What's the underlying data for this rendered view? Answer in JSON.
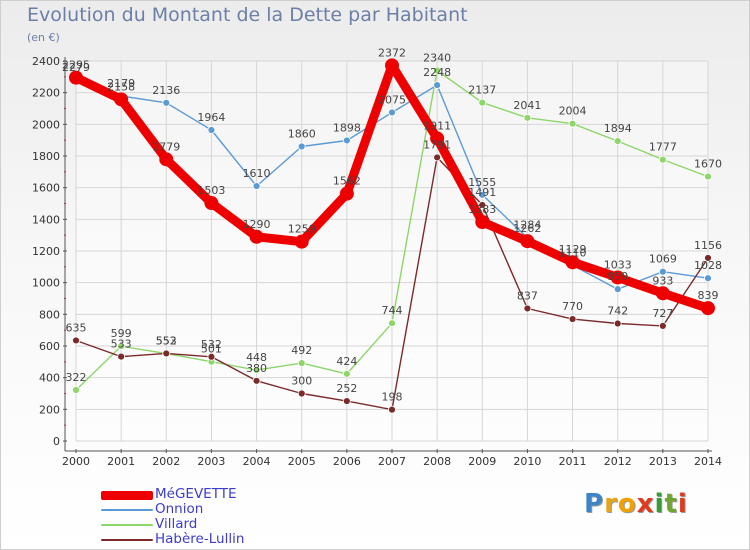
{
  "title": "Evolution du Montant de la Dette par Habitant",
  "subtitle": "(en €)",
  "logo": {
    "text": "Proxiti",
    "letters": [
      "P",
      "r",
      "o",
      "x",
      "i",
      "t",
      "i"
    ],
    "colors": [
      "#3d85c6",
      "#e6a31e",
      "#f0a000",
      "#e03a1e",
      "#3a9a3a",
      "#6fa62f",
      "#e03a1e"
    ]
  },
  "chart_data": {
    "type": "line",
    "x": [
      2000,
      2001,
      2002,
      2003,
      2004,
      2005,
      2006,
      2007,
      2008,
      2009,
      2010,
      2011,
      2012,
      2013,
      2014
    ],
    "ylim": [
      0,
      2400
    ],
    "yticks": [
      0,
      200,
      400,
      600,
      800,
      1000,
      1200,
      1400,
      1600,
      1800,
      2000,
      2200,
      2400
    ],
    "grid": true,
    "legend_position": "bottom-left",
    "series": [
      {
        "name": "MéGEVETTE",
        "color": "#ee0000",
        "values": [
          2295,
          2158,
          1779,
          1503,
          1290,
          1259,
          1562,
          2372,
          1911,
          1383,
          1262,
          1129,
          1033,
          933,
          839
        ],
        "labels": [
          "2295",
          "2158",
          "1779",
          "1503",
          "1290",
          "1259",
          "1562",
          "2372",
          "1911",
          "1383",
          "1262",
          "1129",
          "1033",
          "933",
          "839"
        ]
      },
      {
        "name": "Onnion",
        "color": "#5b9bd5",
        "values": [
          2279,
          2179,
          2136,
          1964,
          1610,
          1860,
          1898,
          2075,
          2248,
          1555,
          1284,
          1110,
          959,
          1069,
          1028
        ],
        "labels": [
          "2279",
          "2179",
          "2136",
          "1964",
          "1610",
          "1860",
          "1898",
          "2075",
          "2248",
          "1555",
          "1284",
          "1110",
          "959",
          "1069",
          "1028"
        ]
      },
      {
        "name": "Villard",
        "color": "#8dd66a",
        "values": [
          322,
          599,
          552,
          501,
          448,
          492,
          424,
          744,
          2340,
          2137,
          2041,
          2004,
          1894,
          1777,
          1670
        ],
        "labels": [
          "322",
          "599",
          "552",
          "501",
          "448",
          "492",
          "424",
          "744",
          "2340",
          "2137",
          "2041",
          "2004",
          "1894",
          "1777",
          "1670"
        ]
      },
      {
        "name": "Habère-Lullin",
        "color": "#7b2a2a",
        "values": [
          635,
          533,
          553,
          532,
          380,
          300,
          252,
          198,
          1791,
          1491,
          837,
          770,
          742,
          727,
          1156
        ],
        "labels": [
          "635",
          "533",
          "553",
          "532",
          "380",
          "300",
          "252",
          "198",
          "1791",
          "1491",
          "837",
          "770",
          "742",
          "727",
          "1156"
        ]
      }
    ]
  }
}
